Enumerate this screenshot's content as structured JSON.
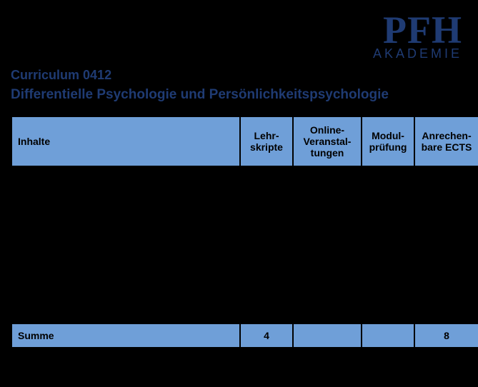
{
  "logo": {
    "main": "PFH",
    "sub": "AKADEMIE"
  },
  "header": {
    "curriculum_label": "Curriculum",
    "curriculum_code": "0412",
    "subtitle": "Differentielle Psychologie und Persönlichkeitspsychologie"
  },
  "table": {
    "columns": [
      "Inhalte",
      "Lehr-\nskripte",
      "Online-\nVeranstal-\ntungen",
      "Modul-\nprüfung",
      "Anrechen-\nbare ECTS"
    ],
    "body_rows": [
      {
        "inhalte": "",
        "lehrskripte": "",
        "online": "",
        "pruefung": "",
        "ects": ""
      }
    ],
    "sum": {
      "label": "Summe",
      "lehrskripte": "4",
      "online": "",
      "pruefung": "",
      "ects": "8"
    },
    "colors": {
      "header_bg": "#6f9fd8",
      "sum_bg": "#6f9fd8",
      "border": "#000000",
      "page_bg": "#000000",
      "brand": "#1f3b73"
    }
  }
}
